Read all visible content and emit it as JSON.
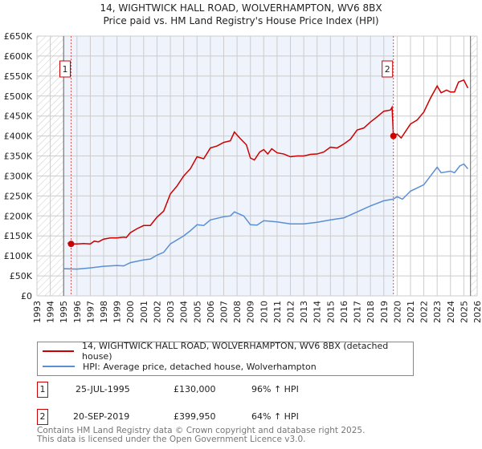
{
  "title_line1": "14, WIGHTWICK HALL ROAD, WOLVERHAMPTON, WV6 8BX",
  "title_line2": "Price paid vs. HM Land Registry's House Price Index (HPI)",
  "chart_data": {
    "type": "line",
    "xlim": [
      1993,
      2026
    ],
    "ylim": [
      0,
      650000
    ],
    "x_ticks": [
      "1993",
      "1994",
      "1995",
      "1996",
      "1997",
      "1998",
      "1999",
      "2000",
      "2001",
      "2002",
      "2003",
      "2004",
      "2005",
      "2006",
      "2007",
      "2008",
      "2009",
      "2010",
      "2011",
      "2012",
      "2013",
      "2014",
      "2015",
      "2016",
      "2017",
      "2018",
      "2019",
      "2020",
      "2021",
      "2022",
      "2023",
      "2024",
      "2025",
      "2026"
    ],
    "y_ticks": [
      {
        "v": 0,
        "label": "£0"
      },
      {
        "v": 50000,
        "label": "£50K"
      },
      {
        "v": 100000,
        "label": "£100K"
      },
      {
        "v": 150000,
        "label": "£150K"
      },
      {
        "v": 200000,
        "label": "£200K"
      },
      {
        "v": 250000,
        "label": "£250K"
      },
      {
        "v": 300000,
        "label": "£300K"
      },
      {
        "v": 350000,
        "label": "£350K"
      },
      {
        "v": 400000,
        "label": "£400K"
      },
      {
        "v": 450000,
        "label": "£450K"
      },
      {
        "v": 500000,
        "label": "£500K"
      },
      {
        "v": 550000,
        "label": "£550K"
      },
      {
        "v": 600000,
        "label": "£600K"
      },
      {
        "v": 650000,
        "label": "£650K"
      }
    ],
    "grid": true,
    "shaded_range": [
      1995,
      2019.72
    ],
    "hatched_ranges": [
      [
        1993,
        1995
      ],
      [
        2025.5,
        2026
      ]
    ],
    "series": [
      {
        "name": "14, WIGHTWICK HALL ROAD, WOLVERHAMPTON, WV6 8BX (detached house)",
        "color": "#cc0000",
        "x": [
          1995.3,
          1995.56,
          1996,
          1996.5,
          1997,
          1997.3,
          1997.6,
          1998,
          1998.5,
          1999,
          1999.5,
          1999.7,
          2000,
          2000.5,
          2001,
          2001.5,
          2002,
          2002.5,
          2003,
          2003.5,
          2004,
          2004.5,
          2005,
          2005.5,
          2006,
          2006.5,
          2007,
          2007.5,
          2007.8,
          2008.2,
          2008.7,
          2009,
          2009.3,
          2009.7,
          2010,
          2010.3,
          2010.6,
          2011,
          2011.5,
          2012,
          2012.5,
          2013,
          2013.5,
          2014,
          2014.5,
          2015,
          2015.5,
          2016,
          2016.5,
          2017,
          2017.5,
          2018,
          2018.5,
          2019,
          2019.5,
          2019.62,
          2019.72,
          2020,
          2020.3,
          2021,
          2021.5,
          2022,
          2022.5,
          2023,
          2023.3,
          2023.7,
          2024,
          2024.3,
          2024.6,
          2025,
          2025.3
        ],
        "y": [
          132000,
          130000,
          130000,
          131000,
          130000,
          137000,
          135000,
          142000,
          145000,
          145000,
          147000,
          146000,
          158000,
          168000,
          176000,
          176000,
          197000,
          212000,
          255000,
          275000,
          300000,
          318000,
          348000,
          343000,
          370000,
          375000,
          384000,
          388000,
          410000,
          395000,
          378000,
          345000,
          340000,
          360000,
          366000,
          355000,
          368000,
          358000,
          355000,
          348000,
          350000,
          350000,
          354000,
          355000,
          360000,
          372000,
          370000,
          380000,
          392000,
          415000,
          420000,
          435000,
          448000,
          462000,
          465000,
          472000,
          399950,
          405000,
          395000,
          430000,
          440000,
          460000,
          495000,
          525000,
          508000,
          515000,
          510000,
          510000,
          535000,
          540000,
          520000
        ]
      },
      {
        "name": "HPI: Average price, detached house, Wolverhampton",
        "color": "#5b8fd4",
        "x": [
          1995,
          1996,
          1997,
          1998,
          1999,
          1999.5,
          2000,
          2001,
          2001.5,
          2002,
          2002.5,
          2003,
          2004,
          2004.5,
          2005,
          2005.5,
          2006,
          2007,
          2007.5,
          2007.8,
          2008.5,
          2009,
          2009.5,
          2010,
          2011,
          2012,
          2013,
          2014,
          2015,
          2016,
          2017,
          2018,
          2019,
          2019.7,
          2020,
          2020.4,
          2021,
          2022,
          2022.5,
          2023,
          2023.3,
          2024,
          2024.3,
          2024.7,
          2025,
          2025.3
        ],
        "y": [
          68000,
          67000,
          70000,
          74000,
          76000,
          75000,
          83000,
          90000,
          92000,
          102000,
          109000,
          130000,
          150000,
          163000,
          178000,
          176000,
          190000,
          198000,
          200000,
          210000,
          200000,
          178000,
          177000,
          188000,
          185000,
          180000,
          180000,
          184000,
          190000,
          195000,
          210000,
          225000,
          238000,
          242000,
          248000,
          242000,
          262000,
          278000,
          300000,
          322000,
          308000,
          312000,
          308000,
          325000,
          330000,
          318000
        ]
      }
    ],
    "annotations": [
      {
        "label": "1",
        "x": 1995.56,
        "y": 130000
      },
      {
        "label": "2",
        "x": 2019.72,
        "y": 399950
      }
    ]
  },
  "legend": {
    "items": [
      "14, WIGHTWICK HALL ROAD, WOLVERHAMPTON, WV6 8BX (detached house)",
      "HPI: Average price, detached house, Wolverhampton"
    ]
  },
  "sales": [
    {
      "num": "1",
      "date": "25-JUL-1995",
      "price": "£130,000",
      "hpi": "96% ↑ HPI"
    },
    {
      "num": "2",
      "date": "20-SEP-2019",
      "price": "£399,950",
      "hpi": "64% ↑ HPI"
    }
  ],
  "footer": {
    "line1": "Contains HM Land Registry data © Crown copyright and database right 2025.",
    "line2": "This data is licensed under the Open Government Licence v3.0."
  }
}
